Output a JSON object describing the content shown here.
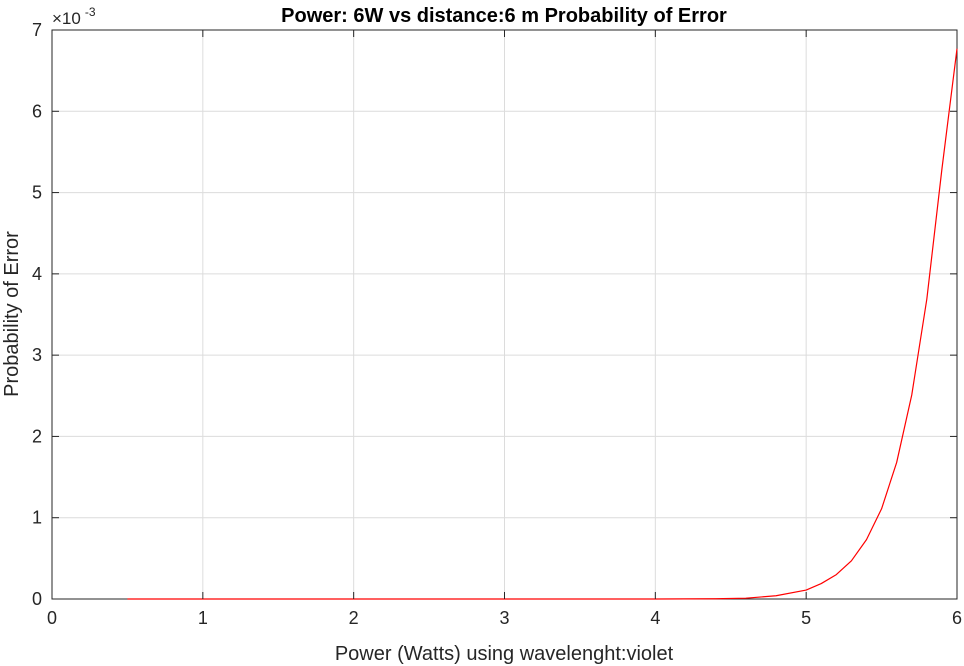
{
  "chart_data": {
    "type": "line",
    "title": "Power: 6W   vs distance:6 m Probability of Error",
    "xlabel": "Power (Watts) using wavelenght:violet",
    "ylabel": "Probability of Error",
    "xlim": [
      0,
      6
    ],
    "ylim": [
      0,
      0.007
    ],
    "xticks": [
      "0",
      "1",
      "2",
      "3",
      "4",
      "5",
      "6"
    ],
    "yticks": [
      "0",
      "1",
      "2",
      "3",
      "4",
      "5",
      "6",
      "7"
    ],
    "y_exponent_label": {
      "base": "×10",
      "exponent": "-3"
    },
    "grid": true,
    "series": [
      {
        "color": "#ff0000",
        "x": [
          0.5,
          1,
          1.5,
          2,
          2.5,
          3,
          3.5,
          4,
          4.4,
          4.6,
          4.8,
          5.0,
          5.1,
          5.2,
          5.3,
          5.4,
          5.5,
          5.6,
          5.7,
          5.8,
          5.9,
          6.0
        ],
        "y": [
          0,
          0,
          0,
          0,
          0,
          0,
          0,
          0,
          3e-06,
          1e-05,
          4e-05,
          0.00011,
          0.00019,
          0.0003,
          0.00047,
          0.00073,
          0.00111,
          0.00168,
          0.00251,
          0.00369,
          0.00529,
          0.00677
        ]
      }
    ]
  }
}
